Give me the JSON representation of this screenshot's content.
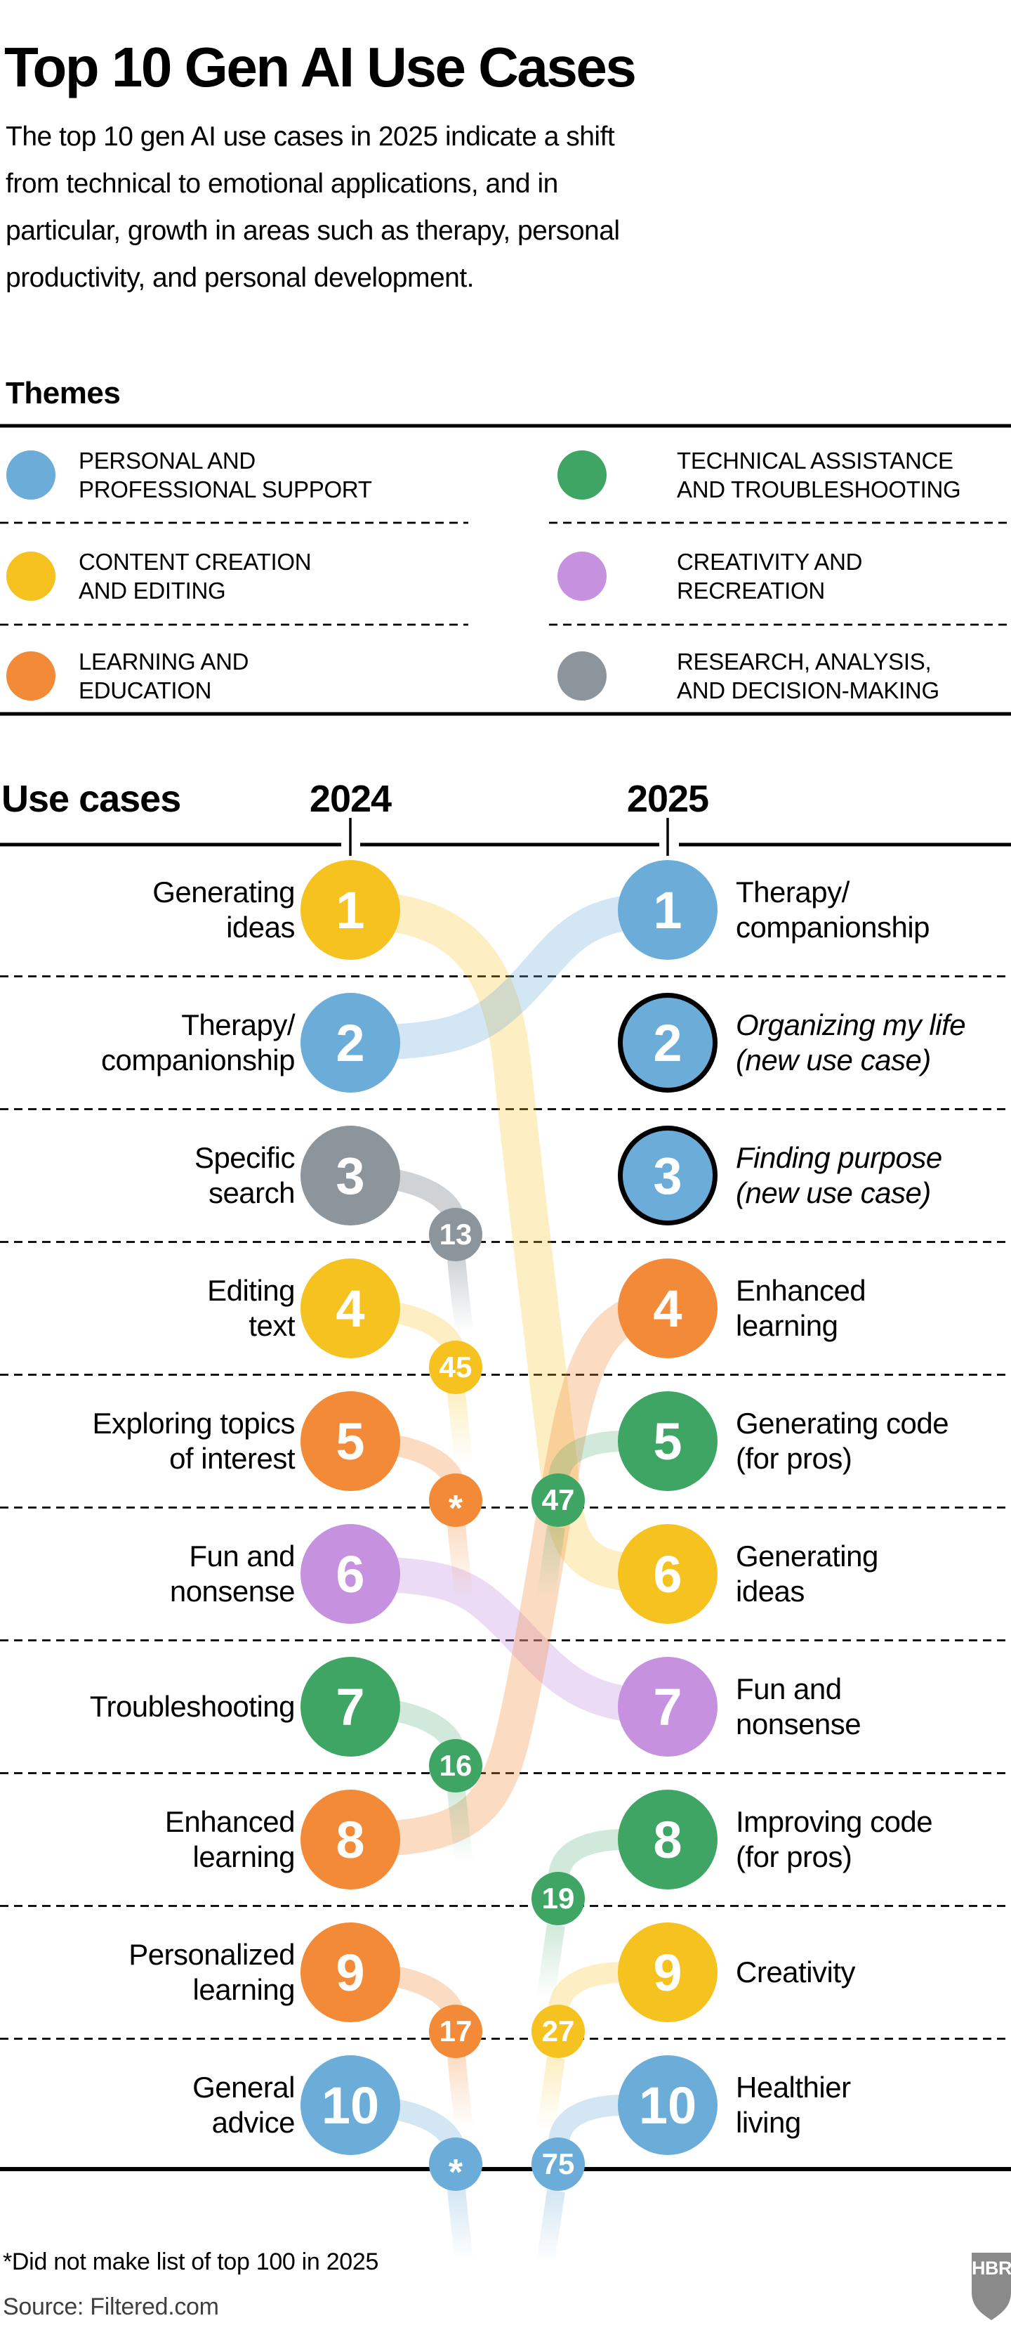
{
  "header": {
    "title": "Top 10 Gen AI Use Cases",
    "subtitle": "The top 10 gen AI use cases in 2025 indicate a shift\nfrom technical to emotional applications, and in\nparticular, growth in areas such as therapy, personal\nproductivity, and personal development."
  },
  "themes": {
    "heading": "Themes",
    "colors": {
      "personal": "#6CACD8",
      "content": "#F6C220",
      "learning": "#F28A38",
      "technical": "#3FA564",
      "creativity": "#C691DE",
      "research": "#8C959C"
    },
    "legend": [
      {
        "theme": "personal",
        "label": "PERSONAL AND\nPROFESSIONAL SUPPORT"
      },
      {
        "theme": "technical",
        "label": "TECHNICAL ASSISTANCE\nAND TROUBLESHOOTING"
      },
      {
        "theme": "content",
        "label": "CONTENT CREATION\nAND EDITING"
      },
      {
        "theme": "creativity",
        "label": "CREATIVITY AND\nRECREATION"
      },
      {
        "theme": "learning",
        "label": "LEARNING AND\nEDUCATION"
      },
      {
        "theme": "research",
        "label": "RESEARCH, ANALYSIS,\nAND DECISION-MAKING"
      }
    ]
  },
  "chart": {
    "col_headers": {
      "use_cases": "Use cases",
      "year_left": "2024",
      "year_right": "2025"
    }
  },
  "chart_data": {
    "type": "slope-rank",
    "years": [
      "2024",
      "2025"
    ],
    "left": [
      {
        "rank": 1,
        "label": "Generating\nideas",
        "theme": "content",
        "outcome": {
          "type": "moved",
          "to_rank": 6
        }
      },
      {
        "rank": 2,
        "label": "Therapy/\ncompanionship",
        "theme": "personal",
        "outcome": {
          "type": "moved",
          "to_rank": 1
        }
      },
      {
        "rank": 3,
        "label": "Specific\nsearch",
        "theme": "research",
        "outcome": {
          "type": "dropped",
          "new_rank": "13"
        }
      },
      {
        "rank": 4,
        "label": "Editing\ntext",
        "theme": "content",
        "outcome": {
          "type": "dropped",
          "new_rank": "45"
        }
      },
      {
        "rank": 5,
        "label": "Exploring topics\nof interest",
        "theme": "learning",
        "outcome": {
          "type": "dropped",
          "new_rank": "*"
        }
      },
      {
        "rank": 6,
        "label": "Fun and\nnonsense",
        "theme": "creativity",
        "outcome": {
          "type": "moved",
          "to_rank": 7
        }
      },
      {
        "rank": 7,
        "label": "Troubleshooting",
        "theme": "technical",
        "outcome": {
          "type": "dropped",
          "new_rank": "16"
        }
      },
      {
        "rank": 8,
        "label": "Enhanced\nlearning",
        "theme": "learning",
        "outcome": {
          "type": "moved",
          "to_rank": 4
        }
      },
      {
        "rank": 9,
        "label": "Personalized\nlearning",
        "theme": "learning",
        "outcome": {
          "type": "dropped",
          "new_rank": "17"
        }
      },
      {
        "rank": 10,
        "label": "General\nadvice",
        "theme": "personal",
        "outcome": {
          "type": "dropped",
          "new_rank": "*"
        }
      }
    ],
    "right": [
      {
        "rank": 1,
        "label": "Therapy/\ncompanionship",
        "theme": "personal",
        "origin": {
          "type": "from_2024",
          "from_rank": 2
        }
      },
      {
        "rank": 2,
        "label": "Organizing my life\n(new use case)",
        "theme": "personal",
        "origin": {
          "type": "new"
        }
      },
      {
        "rank": 3,
        "label": "Finding purpose\n(new use case)",
        "theme": "personal",
        "origin": {
          "type": "new"
        }
      },
      {
        "rank": 4,
        "label": "Enhanced\nlearning",
        "theme": "learning",
        "origin": {
          "type": "from_2024",
          "from_rank": 8
        }
      },
      {
        "rank": 5,
        "label": "Generating code\n(for pros)",
        "theme": "technical",
        "origin": {
          "type": "risen",
          "old_rank": "47"
        }
      },
      {
        "rank": 6,
        "label": "Generating\nideas",
        "theme": "content",
        "origin": {
          "type": "from_2024",
          "from_rank": 1
        }
      },
      {
        "rank": 7,
        "label": "Fun and\nnonsense",
        "theme": "creativity",
        "origin": {
          "type": "from_2024",
          "from_rank": 6
        }
      },
      {
        "rank": 8,
        "label": "Improving code\n(for pros)",
        "theme": "technical",
        "origin": {
          "type": "risen",
          "old_rank": "19"
        }
      },
      {
        "rank": 9,
        "label": "Creativity",
        "theme": "content",
        "origin": {
          "type": "risen",
          "old_rank": "27"
        }
      },
      {
        "rank": 10,
        "label": "Healthier\nliving",
        "theme": "personal",
        "origin": {
          "type": "risen",
          "old_rank": "75"
        }
      }
    ]
  },
  "footer": {
    "footnote": "*Did not make list of top 100 in 2025",
    "source": "Source: Filtered.com",
    "logo": "HBR"
  }
}
